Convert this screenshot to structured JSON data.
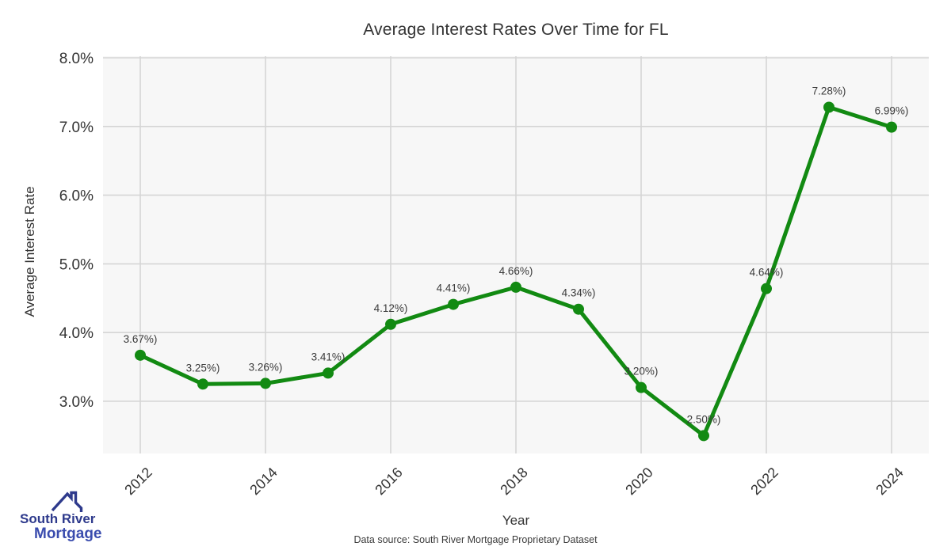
{
  "header": {
    "title": "Average Interest Rates Over Time for FL"
  },
  "chart_data": {
    "type": "line",
    "title": "Average Interest Rates Over Time for FL",
    "xlabel": "Year",
    "ylabel": "Average Interest Rate",
    "x": [
      2012,
      2013,
      2014,
      2015,
      2016,
      2017,
      2018,
      2019,
      2020,
      2021,
      2022,
      2023,
      2024
    ],
    "series": [
      {
        "name": "Average Interest Rate",
        "values": [
          3.67,
          3.25,
          3.26,
          3.41,
          4.12,
          4.41,
          4.66,
          4.34,
          3.2,
          2.5,
          4.64,
          7.28,
          6.99
        ],
        "color": "#128a12"
      }
    ],
    "point_labels": [
      "3.67%)",
      "3.25%)",
      "3.26%)",
      "3.41%)",
      "4.12%)",
      "4.41%)",
      "4.66%)",
      "4.34%)",
      "3.20%)",
      "2.50%)",
      "4.64%)",
      "7.28%)",
      "6.99%)"
    ],
    "yticks": [
      {
        "value": 3.0,
        "label": "3.0%"
      },
      {
        "value": 4.0,
        "label": "4.0%"
      },
      {
        "value": 5.0,
        "label": "5.0%"
      },
      {
        "value": 6.0,
        "label": "6.0%"
      },
      {
        "value": 7.0,
        "label": "7.0%"
      },
      {
        "value": 8.0,
        "label": "8.0%"
      }
    ],
    "xticks": [
      2012,
      2014,
      2016,
      2018,
      2020,
      2022,
      2024
    ],
    "ylim": [
      2.24,
      8.0
    ],
    "xlim": [
      2011.4,
      2024.6
    ],
    "grid": true,
    "legend": "none",
    "plot_bg": "#f7f7f7",
    "grid_color": "#d5d5d5",
    "tick_color": "#333333",
    "label_color": "#3a3a3a"
  },
  "footer": {
    "source": "Data source: South River Mortgage Proprietary Dataset"
  },
  "logo": {
    "line1": "South River",
    "line2": "Mortgage",
    "color1": "#2e3a8c",
    "color2": "#3a4cae",
    "icon_color": "#2e3a8c"
  }
}
